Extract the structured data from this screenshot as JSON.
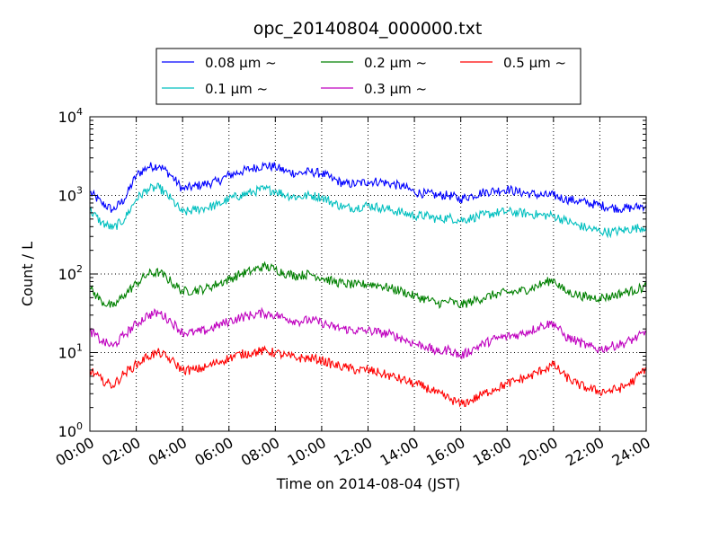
{
  "chart_data": {
    "type": "line",
    "title": "opc_20140804_000000.txt",
    "xlabel": "Time on 2014-08-04 (JST)",
    "ylabel": "Count / L",
    "xlim": [
      "00:00",
      "24:00"
    ],
    "ylim": [
      1,
      10000
    ],
    "yscale": "log",
    "grid": true,
    "legend_placement": "top-center",
    "x_ticks": [
      "00:00",
      "02:00",
      "04:00",
      "06:00",
      "08:00",
      "10:00",
      "12:00",
      "14:00",
      "16:00",
      "18:00",
      "20:00",
      "22:00",
      "24:00"
    ],
    "y_ticks": [
      "10",
      "10",
      "10",
      "10",
      "10"
    ],
    "y_tick_exponents": [
      "0",
      "1",
      "2",
      "3",
      "4"
    ],
    "x": [
      "00:00",
      "00:30",
      "01:00",
      "01:30",
      "02:00",
      "02:30",
      "03:00",
      "03:30",
      "04:00",
      "04:30",
      "05:00",
      "05:30",
      "06:00",
      "06:30",
      "07:00",
      "07:30",
      "08:00",
      "08:30",
      "09:00",
      "09:30",
      "10:00",
      "10:30",
      "11:00",
      "11:30",
      "12:00",
      "12:30",
      "13:00",
      "13:30",
      "14:00",
      "14:30",
      "15:00",
      "15:30",
      "16:00",
      "16:30",
      "17:00",
      "17:30",
      "18:00",
      "18:30",
      "19:00",
      "19:30",
      "20:00",
      "20:30",
      "21:00",
      "21:30",
      "22:00",
      "22:30",
      "23:00",
      "23:30",
      "24:00"
    ],
    "series": [
      {
        "name": "0.08 μm ~",
        "color": "#0000ff",
        "values": [
          1100,
          800,
          650,
          900,
          1800,
          2300,
          2400,
          1800,
          1200,
          1300,
          1400,
          1500,
          1800,
          2000,
          2200,
          2400,
          2300,
          2000,
          1900,
          2000,
          1900,
          1600,
          1400,
          1400,
          1500,
          1500,
          1400,
          1300,
          1100,
          1050,
          1000,
          1000,
          900,
          1000,
          1100,
          1150,
          1200,
          1100,
          1050,
          1000,
          1000,
          900,
          850,
          800,
          750,
          700,
          680,
          700,
          750
        ]
      },
      {
        "name": "0.1 μm ~",
        "color": "#00bfbf",
        "values": [
          650,
          450,
          380,
          500,
          900,
          1200,
          1250,
          900,
          600,
          650,
          700,
          750,
          900,
          1000,
          1100,
          1200,
          1150,
          1000,
          950,
          1000,
          950,
          800,
          700,
          700,
          750,
          700,
          650,
          600,
          550,
          550,
          500,
          520,
          480,
          520,
          560,
          600,
          620,
          600,
          580,
          560,
          550,
          480,
          420,
          380,
          350,
          340,
          360,
          380,
          400
        ]
      },
      {
        "name": "0.2 μm ~",
        "color": "#008000",
        "values": [
          65,
          45,
          38,
          55,
          75,
          100,
          105,
          80,
          60,
          62,
          65,
          75,
          85,
          100,
          110,
          125,
          115,
          100,
          95,
          100,
          90,
          80,
          75,
          72,
          75,
          72,
          65,
          60,
          52,
          48,
          42,
          45,
          40,
          45,
          50,
          55,
          58,
          60,
          65,
          75,
          85,
          60,
          55,
          50,
          50,
          52,
          58,
          62,
          70
        ]
      },
      {
        "name": "0.3 μm ~",
        "color": "#bf00bf",
        "values": [
          19,
          14,
          12,
          17,
          23,
          30,
          32,
          25,
          18,
          18,
          19,
          22,
          25,
          28,
          30,
          32,
          30,
          27,
          25,
          26,
          24,
          21,
          20,
          19,
          19,
          18,
          17,
          15,
          13,
          12,
          10,
          11,
          9,
          11,
          13,
          15,
          16,
          17,
          19,
          22,
          24,
          16,
          14,
          12,
          11,
          12,
          13,
          15,
          18
        ]
      },
      {
        "name": "0.5 μm ~",
        "color": "#ff0000",
        "values": [
          6,
          4.5,
          3.8,
          5.5,
          7,
          9,
          10,
          8,
          6,
          6,
          6.5,
          7.5,
          8.5,
          9.5,
          10,
          10.5,
          10,
          9,
          8.5,
          8.5,
          8,
          7,
          6.5,
          6,
          6,
          5.5,
          5,
          4.5,
          4,
          3.6,
          3,
          2.6,
          2.2,
          2.5,
          3,
          3.5,
          4,
          4.5,
          5,
          6,
          7,
          5,
          4,
          3.5,
          3.2,
          3.3,
          3.6,
          4.5,
          6.5
        ]
      }
    ]
  }
}
